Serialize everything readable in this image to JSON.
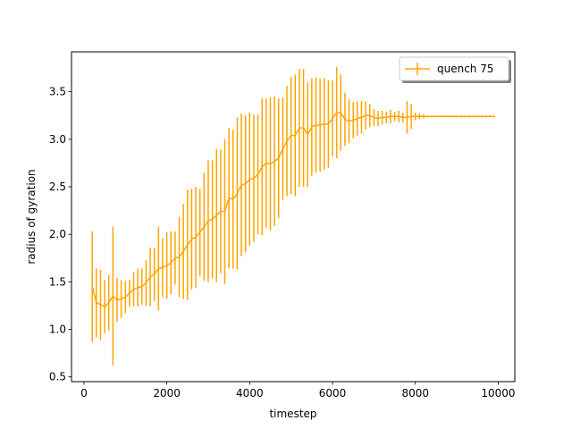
{
  "chart_data": {
    "type": "line",
    "title": "",
    "xlabel": "timestep",
    "ylabel": "radius of gyration",
    "xlim": [
      -300,
      10400
    ],
    "ylim": [
      0.45,
      3.92
    ],
    "xticks": [
      0,
      2000,
      4000,
      6000,
      8000,
      10000
    ],
    "xtick_labels": [
      "0",
      "2000",
      "4000",
      "6000",
      "8000",
      "10000"
    ],
    "yticks": [
      0.5,
      1.0,
      1.5,
      2.0,
      2.5,
      3.0,
      3.5
    ],
    "ytick_labels": [
      "0.5",
      "1.0",
      "1.5",
      "2.0",
      "2.5",
      "3.0",
      "3.5"
    ],
    "grid": false,
    "legend_position": "top-right",
    "colors": {
      "series": "#ffa500",
      "axes": "#000000"
    },
    "series": [
      {
        "name": "quench 75",
        "errorbars": true,
        "x": [
          200,
          300,
          400,
          500,
          600,
          700,
          800,
          900,
          1000,
          1100,
          1200,
          1300,
          1400,
          1500,
          1600,
          1700,
          1800,
          1900,
          2000,
          2100,
          2200,
          2300,
          2400,
          2500,
          2600,
          2700,
          2800,
          2900,
          3000,
          3100,
          3200,
          3300,
          3400,
          3500,
          3600,
          3700,
          3800,
          3900,
          4000,
          4100,
          4200,
          4300,
          4400,
          4500,
          4600,
          4700,
          4800,
          4900,
          5000,
          5100,
          5200,
          5300,
          5400,
          5500,
          5600,
          5700,
          5800,
          5900,
          6000,
          6100,
          6200,
          6300,
          6400,
          6500,
          6600,
          6700,
          6800,
          6900,
          7000,
          7100,
          7200,
          7300,
          7400,
          7500,
          7600,
          7700,
          7800,
          7900,
          8000,
          8100,
          8200,
          8300,
          8400,
          8500,
          8600,
          8700,
          8800,
          8900,
          9000,
          9100,
          9200,
          9300,
          9400,
          9500,
          9600,
          9700,
          9800,
          9900
        ],
        "y": [
          1.45,
          1.28,
          1.26,
          1.24,
          1.28,
          1.35,
          1.31,
          1.32,
          1.34,
          1.38,
          1.42,
          1.44,
          1.45,
          1.49,
          1.55,
          1.58,
          1.64,
          1.65,
          1.67,
          1.7,
          1.75,
          1.76,
          1.82,
          1.89,
          1.95,
          1.97,
          2.02,
          2.08,
          2.14,
          2.16,
          2.2,
          2.24,
          2.24,
          2.38,
          2.37,
          2.43,
          2.52,
          2.53,
          2.58,
          2.59,
          2.63,
          2.71,
          2.75,
          2.74,
          2.77,
          2.8,
          2.9,
          2.98,
          3.04,
          3.04,
          3.12,
          3.12,
          3.05,
          3.13,
          3.15,
          3.15,
          3.16,
          3.16,
          3.22,
          3.28,
          3.28,
          3.21,
          3.19,
          3.2,
          3.22,
          3.23,
          3.25,
          3.25,
          3.23,
          3.22,
          3.23,
          3.23,
          3.24,
          3.24,
          3.24,
          3.23,
          3.23,
          3.24,
          3.24,
          3.24,
          3.24,
          3.24,
          3.24,
          3.24,
          3.24,
          3.24,
          3.24,
          3.24,
          3.24,
          3.24,
          3.24,
          3.24,
          3.24,
          3.24,
          3.24,
          3.24,
          3.24,
          3.24
        ],
        "yerr": [
          0.58,
          0.36,
          0.37,
          0.28,
          0.29,
          0.73,
          0.23,
          0.2,
          0.17,
          0.14,
          0.18,
          0.2,
          0.19,
          0.24,
          0.31,
          0.28,
          0.44,
          0.31,
          0.35,
          0.33,
          0.28,
          0.42,
          0.5,
          0.58,
          0.53,
          0.53,
          0.46,
          0.57,
          0.64,
          0.62,
          0.7,
          0.65,
          0.76,
          0.74,
          0.73,
          0.8,
          0.75,
          0.72,
          0.7,
          0.67,
          0.63,
          0.72,
          0.68,
          0.7,
          0.68,
          0.63,
          0.54,
          0.58,
          0.62,
          0.64,
          0.62,
          0.62,
          0.55,
          0.51,
          0.5,
          0.49,
          0.48,
          0.46,
          0.4,
          0.48,
          0.4,
          0.28,
          0.23,
          0.19,
          0.18,
          0.17,
          0.15,
          0.12,
          0.09,
          0.08,
          0.07,
          0.06,
          0.07,
          0.05,
          0.06,
          0.05,
          0.17,
          0.13,
          0.04,
          0.03,
          0.02,
          0.01,
          0.01,
          0.01,
          0.01,
          0.01,
          0.01,
          0.01,
          0.01,
          0.01,
          0.01,
          0.01,
          0.01,
          0.01,
          0.01,
          0.01,
          0.01,
          0.01
        ]
      }
    ]
  }
}
